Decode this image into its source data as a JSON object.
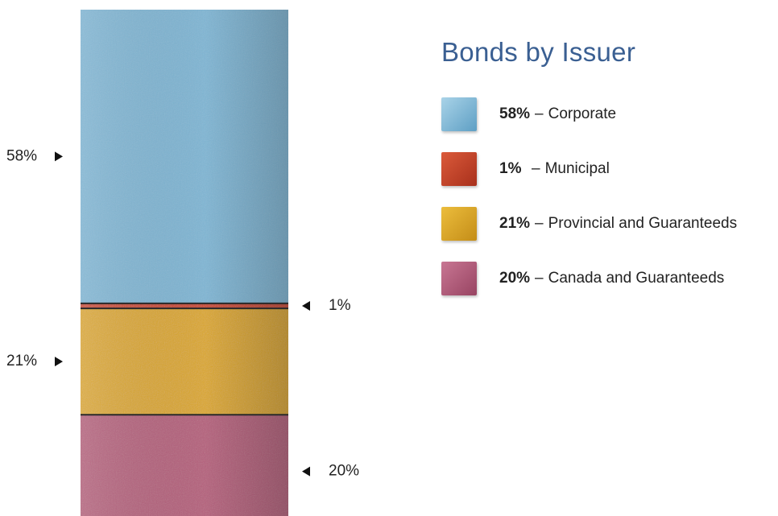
{
  "chart_data": {
    "type": "bar",
    "stacked": true,
    "title": "Bonds by Issuer",
    "unit": "%",
    "categories": [
      "Corporate",
      "Municipal",
      "Provincial and Guaranteeds",
      "Canada and Guaranteeds"
    ],
    "values": [
      58,
      1,
      21,
      20
    ],
    "labels": [
      "58%",
      "1%",
      "21%",
      "20%"
    ],
    "colors": [
      "#7fb6d4",
      "#c7452b",
      "#dba728",
      "#b55f7c"
    ],
    "legend_position": "right"
  },
  "legend": {
    "items": [
      {
        "pct": "58%",
        "dash": "–",
        "label": "Corporate",
        "color": "#7fb6d4"
      },
      {
        "pct": "1%",
        "dash": "–",
        "label": "Municipal",
        "color": "#c7452b"
      },
      {
        "pct": "21%",
        "dash": "–",
        "label": "Provincial and Guaranteeds",
        "color": "#dba728"
      },
      {
        "pct": "20%",
        "dash": "–",
        "label": "Canada and Guaranteeds",
        "color": "#b55f7c"
      }
    ]
  }
}
